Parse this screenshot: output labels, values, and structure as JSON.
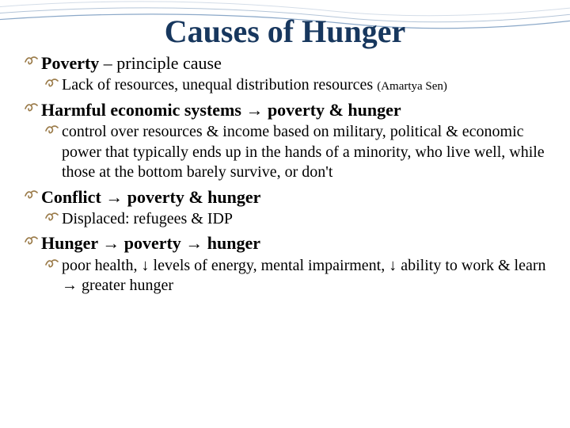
{
  "title": "Causes of Hunger",
  "colors": {
    "title_color": "#17375e",
    "bullet_color": "#9a7a48",
    "text_color": "#000000",
    "background": "#ffffff",
    "decorative_lines": [
      "#8ba8c8",
      "#b4c5d8",
      "#d4dde8"
    ]
  },
  "typography": {
    "title_fontsize": 40,
    "lvl1_fontsize": 22,
    "lvl2_fontsize": 20,
    "small_note_fontsize": 15,
    "font_family": "Georgia, serif"
  },
  "bullets": [
    {
      "level": 1,
      "bold_part": "Poverty",
      "rest": " – principle cause"
    },
    {
      "level": 2,
      "text": "Lack of resources, unequal distribution resources ",
      "note": "(Amartya Sen)"
    },
    {
      "level": 1,
      "bold_part": "Harmful economic systems → poverty & hunger",
      "rest": ""
    },
    {
      "level": 2,
      "text": "control over resources  & income based on military, political & economic power that typically ends up in the hands of a minority, who live well, while those at the bottom barely survive, or don't",
      "note": ""
    },
    {
      "level": 1,
      "bold_part": "Conflict → poverty & hunger",
      "rest": ""
    },
    {
      "level": 2,
      "text": "Displaced: refugees & IDP",
      "note": ""
    },
    {
      "level": 1,
      "bold_part": "Hunger → poverty → hunger",
      "rest": ""
    },
    {
      "level": 2,
      "text": "poor health, ↓ levels of energy, mental impairment, ↓ ability to work & learn → greater hunger",
      "note": ""
    }
  ]
}
